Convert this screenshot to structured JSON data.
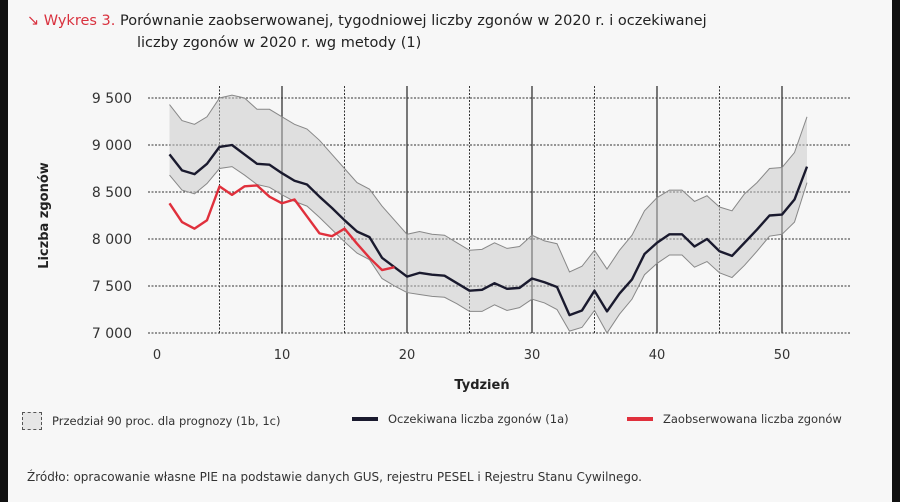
{
  "title": {
    "icon": "arrow-down-right-icon",
    "prefix": "Wykres 3.",
    "line1": "Porównanie zaobserwowanej, tygodniowej liczby zgonów w 2020 r. i oczekiwanej",
    "line2": "liczby zgonów w 2020 r. wg metody (1)"
  },
  "chart_data": {
    "type": "line",
    "xlabel": "Tydzień",
    "ylabel": "Liczba zgonów",
    "xlim": [
      0,
      53
    ],
    "ylim": [
      7000,
      9500
    ],
    "xticks": [
      0,
      10,
      20,
      30,
      40,
      50
    ],
    "xtick_labels": [
      "0",
      "10",
      "20",
      "30",
      "40",
      "50"
    ],
    "yticks": [
      7000,
      7500,
      8000,
      8500,
      9000,
      9500
    ],
    "ytick_labels": [
      "7 000",
      "7 500",
      "8 000",
      "8 500",
      "9 000",
      "9 500"
    ],
    "weeks": [
      1,
      2,
      3,
      4,
      5,
      6,
      7,
      8,
      9,
      10,
      11,
      12,
      13,
      14,
      15,
      16,
      17,
      18,
      19,
      20,
      21,
      22,
      23,
      24,
      25,
      26,
      27,
      28,
      29,
      30,
      31,
      32,
      33,
      34,
      35,
      36,
      37,
      38,
      39,
      40,
      41,
      42,
      43,
      44,
      45,
      46,
      47,
      48,
      49,
      50,
      51,
      52
    ],
    "series": [
      {
        "name": "Przedział 90 proc. dla prognozy (1b, 1c)",
        "type": "band",
        "color": "#e6e6e6",
        "upper": [
          9430,
          9260,
          9220,
          9300,
          9500,
          9530,
          9500,
          9380,
          9380,
          9300,
          9220,
          9170,
          9050,
          8900,
          8750,
          8600,
          8530,
          8350,
          8200,
          8050,
          8080,
          8050,
          8040,
          7960,
          7880,
          7890,
          7960,
          7900,
          7920,
          8040,
          7980,
          7950,
          7650,
          7710,
          7880,
          7680,
          7880,
          8040,
          8300,
          8440,
          8520,
          8520,
          8400,
          8460,
          8340,
          8300,
          8480,
          8600,
          8750,
          8760,
          8920,
          9300
        ],
        "lower": [
          8680,
          8520,
          8480,
          8590,
          8750,
          8770,
          8680,
          8580,
          8550,
          8470,
          8400,
          8350,
          8230,
          8100,
          7970,
          7850,
          7780,
          7580,
          7500,
          7430,
          7410,
          7390,
          7380,
          7310,
          7230,
          7230,
          7300,
          7240,
          7270,
          7360,
          7320,
          7250,
          7020,
          7060,
          7240,
          7000,
          7200,
          7360,
          7620,
          7740,
          7830,
          7830,
          7700,
          7760,
          7640,
          7590,
          7720,
          7870,
          8030,
          8050,
          8180,
          8600
        ]
      },
      {
        "name": "Oczekiwana liczba zgonów (1a)",
        "color": "#1a1a2e",
        "values": [
          8900,
          8730,
          8690,
          8800,
          8980,
          9000,
          8900,
          8800,
          8790,
          8700,
          8620,
          8580,
          8450,
          8330,
          8200,
          8080,
          8020,
          7800,
          7700,
          7600,
          7640,
          7620,
          7610,
          7530,
          7450,
          7460,
          7530,
          7470,
          7480,
          7580,
          7540,
          7490,
          7190,
          7240,
          7450,
          7230,
          7420,
          7570,
          7840,
          7960,
          8050,
          8050,
          7920,
          8000,
          7870,
          7820,
          7960,
          8100,
          8250,
          8260,
          8420,
          8770
        ]
      },
      {
        "name": "Zaobserwowana liczba zgonów",
        "color": "#e0303c",
        "values": [
          8380,
          8180,
          8110,
          8200,
          8560,
          8470,
          8560,
          8570,
          8450,
          8380,
          8420,
          8240,
          8060,
          8030,
          8110,
          7950,
          7800,
          7670,
          7700
        ]
      }
    ]
  },
  "source": "Źródło: opracowanie własne PIE na podstawie danych GUS, rejestru PESEL i Rejestru Stanu Cywilnego."
}
